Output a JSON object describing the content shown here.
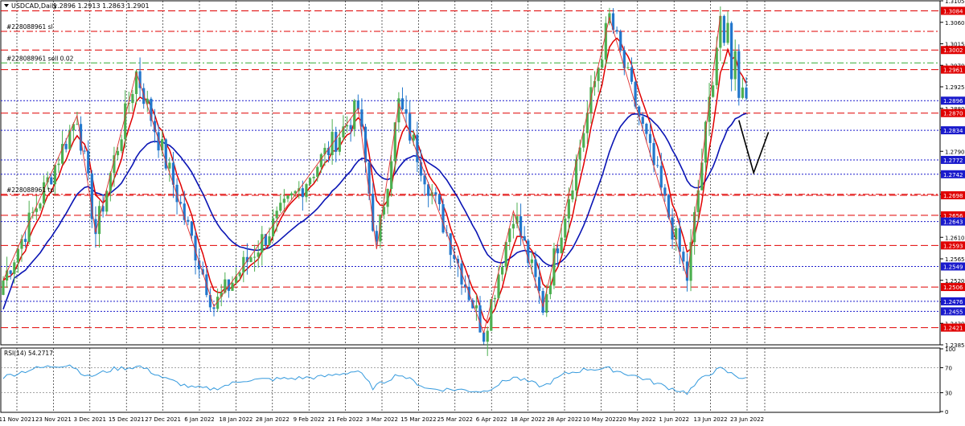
{
  "header": {
    "symbol_label": "USDCAD,Daily",
    "ohlc": "1.2896 1.2913 1.2863 1.2901"
  },
  "order_labels": [
    {
      "text": "#228088961 sl",
      "price": 1.3041
    },
    {
      "text": "#228088961 sell 0.02",
      "price": 1.2975
    },
    {
      "text": "#228088961 tp",
      "price": 1.27
    }
  ],
  "rsi_label": "RSI(14) 54.2717",
  "colors": {
    "bull": "#4caf50",
    "bear": "#2277cc",
    "ma_fast": "#e00000",
    "ma_slow": "#0a14b4",
    "red_level": "#e00000",
    "blue_level": "#1a1acc",
    "green_level": "#33aa33",
    "rsi_line": "#3399dd",
    "zigzag": "#e03030",
    "projection": "#000000"
  },
  "chart_data": [
    {
      "type": "candlestick",
      "title": "USDCAD,Daily",
      "y_ticks": [
        "1.3105",
        "1.3060",
        "1.3015",
        "1.2970",
        "1.2925",
        "1.2880",
        "1.2835",
        "1.2790",
        "1.2745",
        "1.2700",
        "1.2655",
        "1.2610",
        "1.2565",
        "1.2520",
        "1.2475",
        "1.2430",
        "1.2385"
      ],
      "x_ticks": [
        "11 Nov 2021",
        "23 Nov 2021",
        "3 Dec 2021",
        "15 Dec 2021",
        "27 Dec 2021",
        "6 Jan 2022",
        "18 Jan 2022",
        "28 Jan 2022",
        "9 Feb 2022",
        "21 Feb 2022",
        "3 Mar 2022",
        "15 Mar 2022",
        "25 Mar 2022",
        "6 Apr 2022",
        "18 Apr 2022",
        "28 Apr 2022",
        "10 May 2022",
        "20 May 2022",
        "1 Jun 2022",
        "13 Jun 2022",
        "23 Jun 2022"
      ],
      "ylim": [
        1.2385,
        1.3105
      ],
      "red_levels": [
        {
          "label": "1.3084",
          "value": 1.3084
        },
        {
          "label": "1.3002",
          "value": 1.3002
        },
        {
          "label": "1.2961",
          "value": 1.2961
        },
        {
          "label": "1.2870",
          "value": 1.287
        },
        {
          "label": "1.2698",
          "value": 1.2698
        },
        {
          "label": "1.2656",
          "value": 1.2656
        },
        {
          "label": "1.2593",
          "value": 1.2593
        },
        {
          "label": "1.2506",
          "value": 1.2506
        },
        {
          "label": "1.2421",
          "value": 1.2421
        }
      ],
      "blue_levels": [
        {
          "label": "1.2896",
          "value": 1.2896
        },
        {
          "label": "1.2834",
          "value": 1.2834
        },
        {
          "label": "1.2772",
          "value": 1.2772
        },
        {
          "label": "1.2742",
          "value": 1.2742
        },
        {
          "label": "1.2643",
          "value": 1.2643
        },
        {
          "label": "1.2549",
          "value": 1.2549
        },
        {
          "label": "1.2476",
          "value": 1.2476
        },
        {
          "label": "1.2455",
          "value": 1.2455
        }
      ],
      "swing_points": [
        {
          "i": 0,
          "p": 1.252
        },
        {
          "i": 20,
          "p": 1.2865
        },
        {
          "i": 25,
          "p": 1.262
        },
        {
          "i": 36,
          "p": 1.2955
        },
        {
          "i": 57,
          "p": 1.2465
        },
        {
          "i": 96,
          "p": 1.288
        },
        {
          "i": 101,
          "p": 1.2585
        },
        {
          "i": 107,
          "p": 1.289
        },
        {
          "i": 130,
          "p": 1.241
        },
        {
          "i": 138,
          "p": 1.2665
        },
        {
          "i": 146,
          "p": 1.2465
        },
        {
          "i": 164,
          "p": 1.307
        },
        {
          "i": 185,
          "p": 1.2525
        },
        {
          "i": 194,
          "p": 1.3075
        }
      ],
      "projection_points": [
        {
          "i": 199,
          "p": 1.2855
        },
        {
          "i": 203,
          "p": 1.2745
        },
        {
          "i": 207,
          "p": 1.283
        }
      ],
      "last_close": 1.2901
    },
    {
      "type": "line",
      "title": "RSI(14) 54.2717",
      "y_ticks": [
        "100",
        "70",
        "30",
        "0"
      ],
      "ylim": [
        0,
        100
      ],
      "keypoints": [
        {
          "i": 0,
          "v": 55
        },
        {
          "i": 8,
          "v": 68
        },
        {
          "i": 13,
          "v": 72
        },
        {
          "i": 18,
          "v": 75
        },
        {
          "i": 23,
          "v": 55
        },
        {
          "i": 30,
          "v": 68
        },
        {
          "i": 37,
          "v": 72
        },
        {
          "i": 44,
          "v": 52
        },
        {
          "i": 51,
          "v": 38
        },
        {
          "i": 57,
          "v": 36
        },
        {
          "i": 65,
          "v": 50
        },
        {
          "i": 75,
          "v": 52
        },
        {
          "i": 86,
          "v": 55
        },
        {
          "i": 96,
          "v": 65
        },
        {
          "i": 100,
          "v": 38
        },
        {
          "i": 107,
          "v": 60
        },
        {
          "i": 115,
          "v": 36
        },
        {
          "i": 123,
          "v": 35
        },
        {
          "i": 130,
          "v": 32
        },
        {
          "i": 138,
          "v": 55
        },
        {
          "i": 146,
          "v": 40
        },
        {
          "i": 152,
          "v": 60
        },
        {
          "i": 158,
          "v": 68
        },
        {
          "i": 164,
          "v": 68
        },
        {
          "i": 172,
          "v": 55
        },
        {
          "i": 180,
          "v": 38
        },
        {
          "i": 185,
          "v": 30
        },
        {
          "i": 190,
          "v": 58
        },
        {
          "i": 194,
          "v": 68
        },
        {
          "i": 199,
          "v": 55
        },
        {
          "i": 201,
          "v": 54.27
        }
      ]
    }
  ]
}
